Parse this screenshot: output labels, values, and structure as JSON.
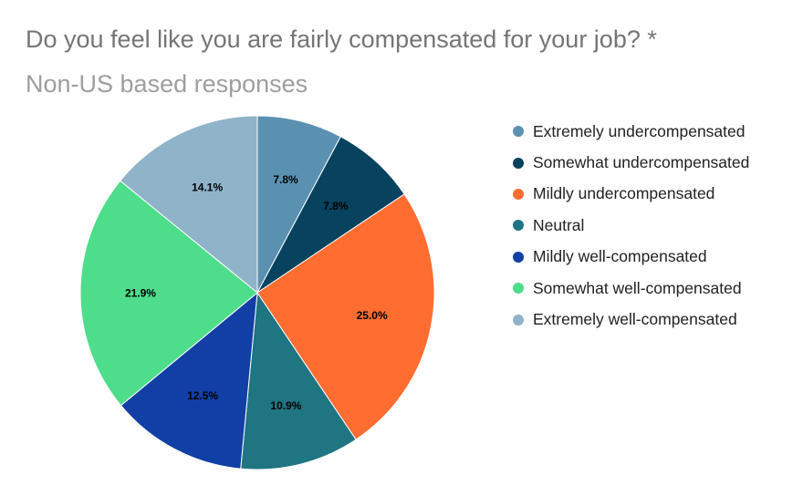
{
  "chart_data": {
    "type": "pie",
    "title": "Do you feel like you are fairly compensated for your job? *",
    "subtitle": "Non-US based responses",
    "legend_position": "right",
    "slices": [
      {
        "label": "Extremely undercompensated",
        "value": 7.8,
        "display": "7.8%",
        "color": "#5a91b1"
      },
      {
        "label": "Somewhat undercompensated",
        "value": 7.8,
        "display": "7.8%",
        "color": "#07425e"
      },
      {
        "label": "Mildly undercompensated",
        "value": 25.0,
        "display": "25.0%",
        "color": "#ff6d31"
      },
      {
        "label": "Neutral",
        "value": 10.9,
        "display": "10.9%",
        "color": "#1f7581"
      },
      {
        "label": "Mildly well-compensated",
        "value": 12.5,
        "display": "12.5%",
        "color": "#123fa6"
      },
      {
        "label": "Somewhat well-compensated",
        "value": 21.9,
        "display": "21.9%",
        "color": "#4edd8a"
      },
      {
        "label": "Extremely well-compensated",
        "value": 14.1,
        "display": "14.1%",
        "color": "#8fb3c9"
      }
    ]
  }
}
